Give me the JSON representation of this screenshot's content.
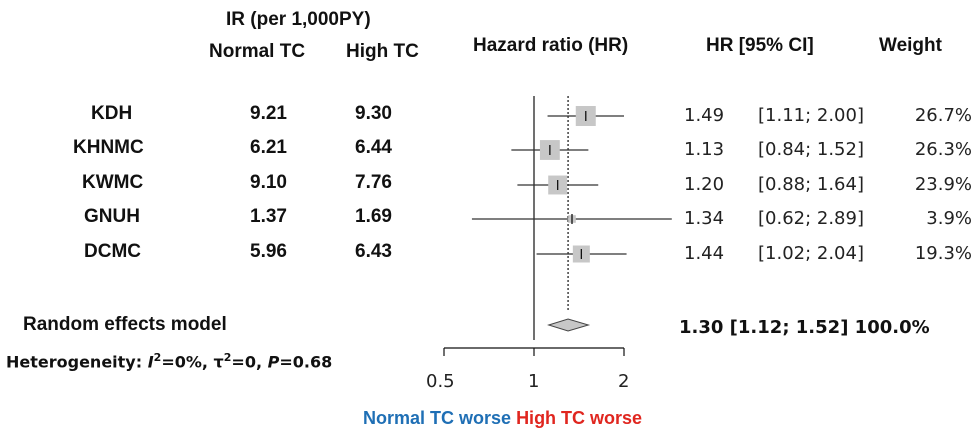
{
  "header": {
    "ir_title": "IR (per 1,000PY)",
    "normal_tc": "Normal TC",
    "high_tc": "High TC",
    "hr_title": "Hazard ratio (HR)",
    "hr_ci": "HR  [95% CI]",
    "weight": "Weight"
  },
  "random_effects_label": "Random effects model",
  "heterogeneity": {
    "prefix": "Heterogeneity: ",
    "i2_symbol": "I",
    "i2_text": "=0%, τ",
    "tau_text": "=0, ",
    "p_symbol": "P",
    "p_text": "=0.68"
  },
  "footer": {
    "left": "Normal TC worse",
    "right": "High TC worse",
    "left_color": "#1f6fb5",
    "right_color": "#e0261f"
  },
  "chart_data": {
    "type": "forest",
    "x_scale": "log",
    "xlim": [
      0.5,
      2
    ],
    "x_ticks": [
      {
        "value": 0.5,
        "label": "0.5"
      },
      {
        "value": 1,
        "label": "1"
      },
      {
        "value": 2,
        "label": "2"
      }
    ],
    "reference_line": 1,
    "pooled_line": 1.3,
    "studies": [
      {
        "name": "KDH",
        "ir_normal": "9.21",
        "ir_high": "9.30",
        "hr": 1.49,
        "lo": 1.11,
        "hi": 2.0,
        "hr_text": "1.49",
        "ci_text": "[1.11; 2.00]",
        "weight": 26.7,
        "weight_text": "26.7%"
      },
      {
        "name": "KHNMC",
        "ir_normal": "6.21",
        "ir_high": "6.44",
        "hr": 1.13,
        "lo": 0.84,
        "hi": 1.52,
        "hr_text": "1.13",
        "ci_text": "[0.84; 1.52]",
        "weight": 26.3,
        "weight_text": "26.3%"
      },
      {
        "name": "KWMC",
        "ir_normal": "9.10",
        "ir_high": "7.76",
        "hr": 1.2,
        "lo": 0.88,
        "hi": 1.64,
        "hr_text": "1.20",
        "ci_text": "[0.88; 1.64]",
        "weight": 23.9,
        "weight_text": "23.9%"
      },
      {
        "name": "GNUH",
        "ir_normal": "1.37",
        "ir_high": "1.69",
        "hr": 1.34,
        "lo": 0.62,
        "hi": 2.89,
        "hr_text": "1.34",
        "ci_text": "[0.62; 2.89]",
        "weight": 3.9,
        "weight_text": "3.9%"
      },
      {
        "name": "DCMC",
        "ir_normal": "5.96",
        "ir_high": "6.43",
        "hr": 1.44,
        "lo": 1.02,
        "hi": 2.04,
        "hr_text": "1.44",
        "ci_text": "[1.02; 2.04]",
        "weight": 19.3,
        "weight_text": "19.3%"
      }
    ],
    "pooled": {
      "hr": 1.3,
      "lo": 1.12,
      "hi": 1.52,
      "text": "1.30 [1.12; 1.52] 100.0%"
    }
  }
}
